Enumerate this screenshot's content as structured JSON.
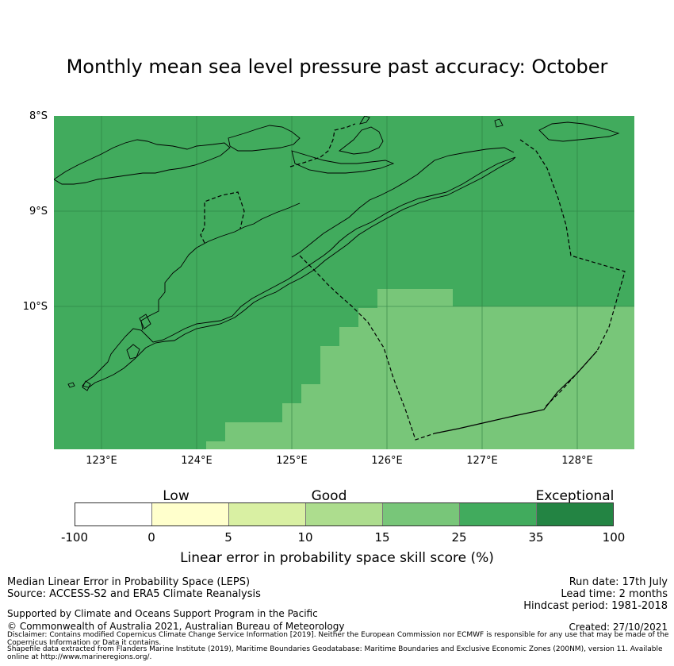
{
  "title": "Monthly mean sea level pressure past accuracy: October",
  "map": {
    "lat_labels": [
      "8°S",
      "9°S",
      "10°S"
    ],
    "lon_labels": [
      "123°E",
      "124°E",
      "125°E",
      "126°E",
      "127°E",
      "128°E"
    ],
    "colors": {
      "ocean_good": "#41ab5d",
      "ocean_fair": "#78c679",
      "grid": "#2a7a3f",
      "border": "#000000"
    }
  },
  "colorbar": {
    "categories": [
      "Low",
      "Good",
      "Exceptional"
    ],
    "ticks": [
      "-100",
      "0",
      "5",
      "10",
      "15",
      "25",
      "35",
      "100"
    ],
    "colors": [
      "#ffffff",
      "#ffffcc",
      "#d9f0a3",
      "#addd8e",
      "#78c679",
      "#41ab5d",
      "#238443"
    ],
    "label": "Linear error in probability space skill score (%)"
  },
  "footer": {
    "method": "Median Linear Error in Probability Space (LEPS)",
    "source": "Source: ACCESS-S2 and ERA5 Climate Reanalysis",
    "run_date": "Run date: 17th July",
    "lead_time": "Lead time: 2 months",
    "hindcast": "Hindcast period: 1981-2018",
    "support": "Supported by Climate and Oceans Support Program in the Pacific",
    "copyright": "© Commonwealth of Australia 2021, Australian Bureau of Meteorology",
    "created": "Created: 27/10/2021",
    "disclaimer": "Disclaimer: Contains modified Copernicus Climate Change Service Information [2019]. Neither the European Commission nor ECMWF is responsible for any use that may be made of the Copernicus Information or Data it contains.",
    "shapefile": "Shapefile data extracted from Flanders Marine Institute (2019), Maritime Boundaries Geodatabase: Maritime Boundaries and Exclusive Economic Zones (200NM), version 11. Available online at http://www.marineregions.org/."
  }
}
